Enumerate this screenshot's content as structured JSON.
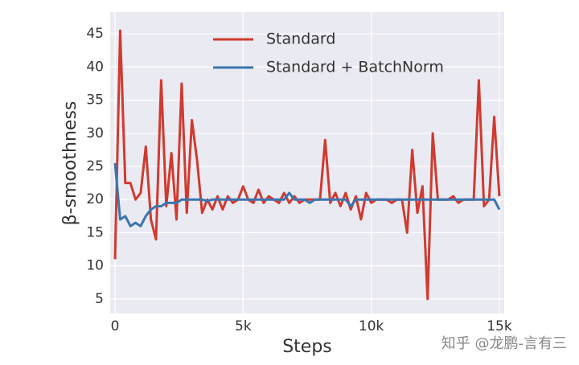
{
  "chart_data": {
    "type": "line",
    "xlabel": "Steps",
    "ylabel": "β-smoothness",
    "xlim": [
      -190,
      15190
    ],
    "ylim": [
      2.8,
      48.3
    ],
    "xticks": [
      0,
      {
        "value": 5000,
        "label": "5k"
      },
      {
        "value": 10000,
        "label": "10k"
      },
      {
        "value": 15000,
        "label": "15k"
      }
    ],
    "yticks": [
      5,
      10,
      15,
      20,
      25,
      30,
      35,
      40,
      45
    ],
    "grid": true,
    "legend": "upper center",
    "x": [
      0,
      200,
      400,
      600,
      800,
      1000,
      1200,
      1400,
      1600,
      1800,
      2000,
      2200,
      2400,
      2600,
      2800,
      3000,
      3200,
      3400,
      3600,
      3800,
      4000,
      4200,
      4400,
      4600,
      4800,
      5000,
      5200,
      5400,
      5600,
      5800,
      6000,
      6200,
      6400,
      6600,
      6800,
      7000,
      7200,
      7400,
      7600,
      7800,
      8000,
      8200,
      8400,
      8600,
      8800,
      9000,
      9200,
      9400,
      9600,
      9800,
      10000,
      10200,
      10400,
      10600,
      10800,
      11000,
      11200,
      11400,
      11600,
      11800,
      12000,
      12200,
      12400,
      12600,
      12800,
      13000,
      13200,
      13400,
      13600,
      13800,
      14000,
      14200,
      14400,
      14600,
      14800,
      15000
    ],
    "series": [
      {
        "name": "Standard",
        "color": "#d03a2f",
        "values": [
          11,
          45.5,
          22.5,
          22.5,
          20,
          21,
          28,
          17,
          14,
          38,
          19,
          27,
          17,
          37.5,
          18,
          32,
          26,
          18,
          20,
          18.5,
          20.5,
          18.5,
          20.5,
          19.5,
          20,
          22,
          20,
          19.5,
          21.5,
          19.5,
          20.5,
          20,
          19.5,
          21,
          19.5,
          20.5,
          19.5,
          20,
          20,
          20,
          20,
          29,
          19.5,
          21,
          19,
          21,
          18.5,
          20.5,
          17,
          21,
          19.5,
          20,
          20,
          20,
          19.5,
          20,
          20,
          15,
          27.5,
          18,
          22,
          5,
          30,
          20,
          20,
          20,
          20.5,
          19.5,
          20,
          20,
          20,
          38,
          19,
          20,
          32.5,
          20.5
        ]
      },
      {
        "name": "Standard + BatchNorm",
        "color": "#3a75b0",
        "values": [
          25.5,
          17,
          17.5,
          16,
          16.5,
          16,
          17.5,
          18.5,
          19,
          19,
          19.5,
          19.5,
          19.5,
          20,
          20,
          20,
          20,
          20,
          19.8,
          20,
          20,
          20,
          20,
          20,
          20,
          20,
          20,
          20,
          20,
          20,
          20,
          20,
          20,
          20,
          21,
          20,
          20,
          20,
          19.5,
          20,
          20,
          20,
          20,
          20,
          20,
          20,
          19,
          20,
          20,
          20,
          20,
          20,
          20,
          20,
          20,
          20,
          20,
          20,
          20,
          20,
          20,
          20,
          20,
          20,
          20,
          20,
          20,
          20,
          20,
          20,
          20,
          20,
          20,
          20,
          20,
          18.5
        ]
      }
    ]
  },
  "watermark": "知乎 @龙鹏-言有三"
}
